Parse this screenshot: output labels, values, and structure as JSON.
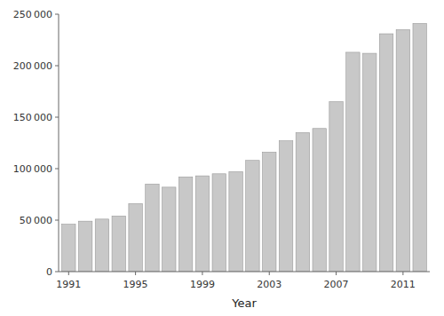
{
  "chart_data": {
    "type": "bar",
    "xlabel": "Year",
    "x": [
      1991,
      1992,
      1993,
      1994,
      1995,
      1996,
      1997,
      1998,
      1999,
      2000,
      2001,
      2002,
      2003,
      2004,
      2005,
      2006,
      2007,
      2008,
      2009,
      2010,
      2011,
      2012
    ],
    "values": [
      46000,
      49000,
      51000,
      54000,
      66000,
      85000,
      82000,
      92000,
      93000,
      95000,
      97000,
      108000,
      116000,
      127000,
      135000,
      139000,
      165000,
      213000,
      212000,
      231000,
      235000,
      241000
    ],
    "color": "#c8c8c8",
    "xlim": [
      1990.4,
      2012.6
    ],
    "xticks": [
      1991,
      1995,
      1999,
      2003,
      2007,
      2011
    ],
    "ylim": [
      0,
      250000
    ],
    "yticks": [
      0,
      {
        "value": 50000,
        "label": "50 000"
      },
      {
        "value": 100000,
        "label": "100 000"
      },
      {
        "value": 150000,
        "label": "150 000"
      },
      {
        "value": 200000,
        "label": "200 000"
      },
      {
        "value": 250000,
        "label": "250 000"
      }
    ],
    "grid": false
  }
}
